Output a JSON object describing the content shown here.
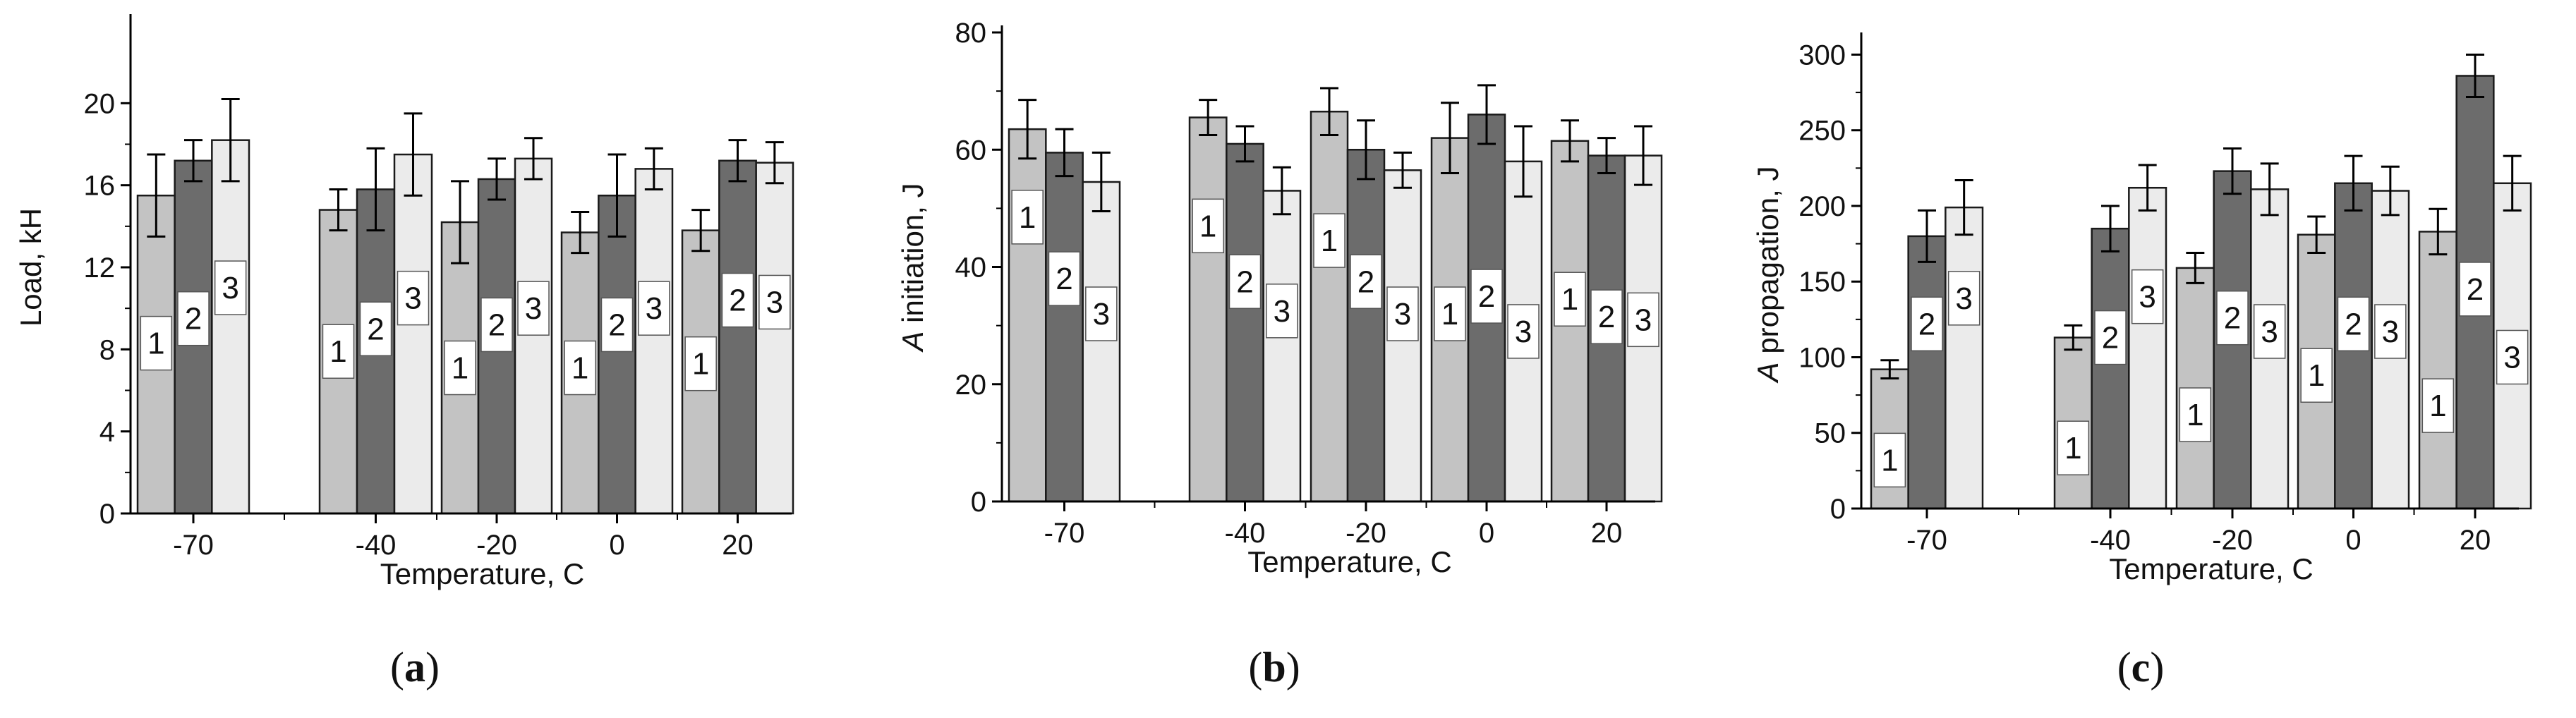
{
  "colors": {
    "series1": "#c3c3c3",
    "series2": "#6c6c6c",
    "series3": "#ebebeb",
    "stroke": "#1a1a1a",
    "text": "#111111",
    "label_box": "#ffffff"
  },
  "chart_data": [
    {
      "type": "bar",
      "panel_label": "(a)",
      "categories": [
        "-70",
        "-40",
        "-20",
        "0",
        "20"
      ],
      "series": [
        {
          "name": "1",
          "values": [
            15.5,
            14.8,
            14.2,
            13.7,
            13.8
          ],
          "errors": [
            2.0,
            1.0,
            2.0,
            1.0,
            1.0
          ],
          "label_values": [
            8.3,
            7.9,
            7.1,
            7.1,
            7.3
          ]
        },
        {
          "name": "2",
          "values": [
            17.2,
            15.8,
            16.3,
            15.5,
            17.2
          ],
          "errors": [
            1.0,
            2.0,
            1.0,
            2.0,
            1.0
          ],
          "label_values": [
            9.5,
            9.0,
            9.2,
            9.2,
            10.4
          ]
        },
        {
          "name": "3",
          "values": [
            18.2,
            17.5,
            17.3,
            16.8,
            17.1
          ],
          "errors": [
            2.0,
            2.0,
            1.0,
            1.0,
            1.0
          ],
          "label_values": [
            11.0,
            10.5,
            10.0,
            10.0,
            10.3
          ]
        }
      ],
      "title": "",
      "xlabel": "Temperature, C",
      "ylabel": "Load, kH",
      "ylim": [
        0,
        24
      ],
      "yticks": [
        "0",
        "4",
        "8",
        "12",
        "16",
        "20"
      ],
      "ytick_values": [
        0,
        4,
        8,
        12,
        16,
        20
      ]
    },
    {
      "type": "bar",
      "panel_label": "(b)",
      "categories": [
        "-70",
        "-40",
        "-20",
        "0",
        "20"
      ],
      "series": [
        {
          "name": "1",
          "values": [
            63.5,
            65.5,
            66.5,
            62.0,
            61.5
          ],
          "errors": [
            5.0,
            3.0,
            4.0,
            6.0,
            3.5
          ],
          "label_values": [
            48.5,
            47.0,
            44.5,
            32.0,
            34.5
          ]
        },
        {
          "name": "2",
          "values": [
            59.5,
            61.0,
            60.0,
            66.0,
            59.0
          ],
          "errors": [
            4.0,
            3.0,
            5.0,
            5.0,
            3.0
          ],
          "label_values": [
            38.0,
            37.5,
            37.5,
            35.0,
            31.5
          ]
        },
        {
          "name": "3",
          "values": [
            54.5,
            53.0,
            56.5,
            58.0,
            59.0
          ],
          "errors": [
            5.0,
            4.0,
            3.0,
            6.0,
            5.0
          ],
          "label_values": [
            32.0,
            32.5,
            32.0,
            29.0,
            31.0
          ]
        }
      ],
      "title": "",
      "xlabel": "Temperature, C",
      "ylabel": "A initiation, J",
      "ylim": [
        0,
        80
      ],
      "yticks": [
        "0",
        "20",
        "40",
        "60",
        "80"
      ],
      "ytick_values": [
        0,
        20,
        40,
        60,
        80
      ]
    },
    {
      "type": "bar",
      "panel_label": "(c)",
      "categories": [
        "-70",
        "-40",
        "-20",
        "0",
        "20"
      ],
      "series": [
        {
          "name": "1",
          "values": [
            92,
            113,
            159,
            181,
            183
          ],
          "errors": [
            6,
            8,
            10,
            12,
            15
          ],
          "label_values": [
            32,
            40,
            62,
            88,
            68
          ]
        },
        {
          "name": "2",
          "values": [
            180,
            185,
            223,
            215,
            286
          ],
          "errors": [
            17,
            15,
            15,
            18,
            14
          ],
          "label_values": [
            122,
            113,
            126,
            122,
            145
          ]
        },
        {
          "name": "3",
          "values": [
            199,
            212,
            211,
            210,
            215
          ],
          "errors": [
            18,
            15,
            17,
            16,
            18
          ],
          "label_values": [
            139,
            140,
            117,
            117,
            100
          ]
        }
      ],
      "title": "",
      "xlabel": "Temperature, C",
      "ylabel": "A propagation, J",
      "ylim": [
        0,
        310
      ],
      "yticks": [
        "0",
        "50",
        "100",
        "150",
        "200",
        "250",
        "300"
      ],
      "ytick_values": [
        0,
        50,
        100,
        150,
        200,
        250,
        300
      ]
    }
  ]
}
